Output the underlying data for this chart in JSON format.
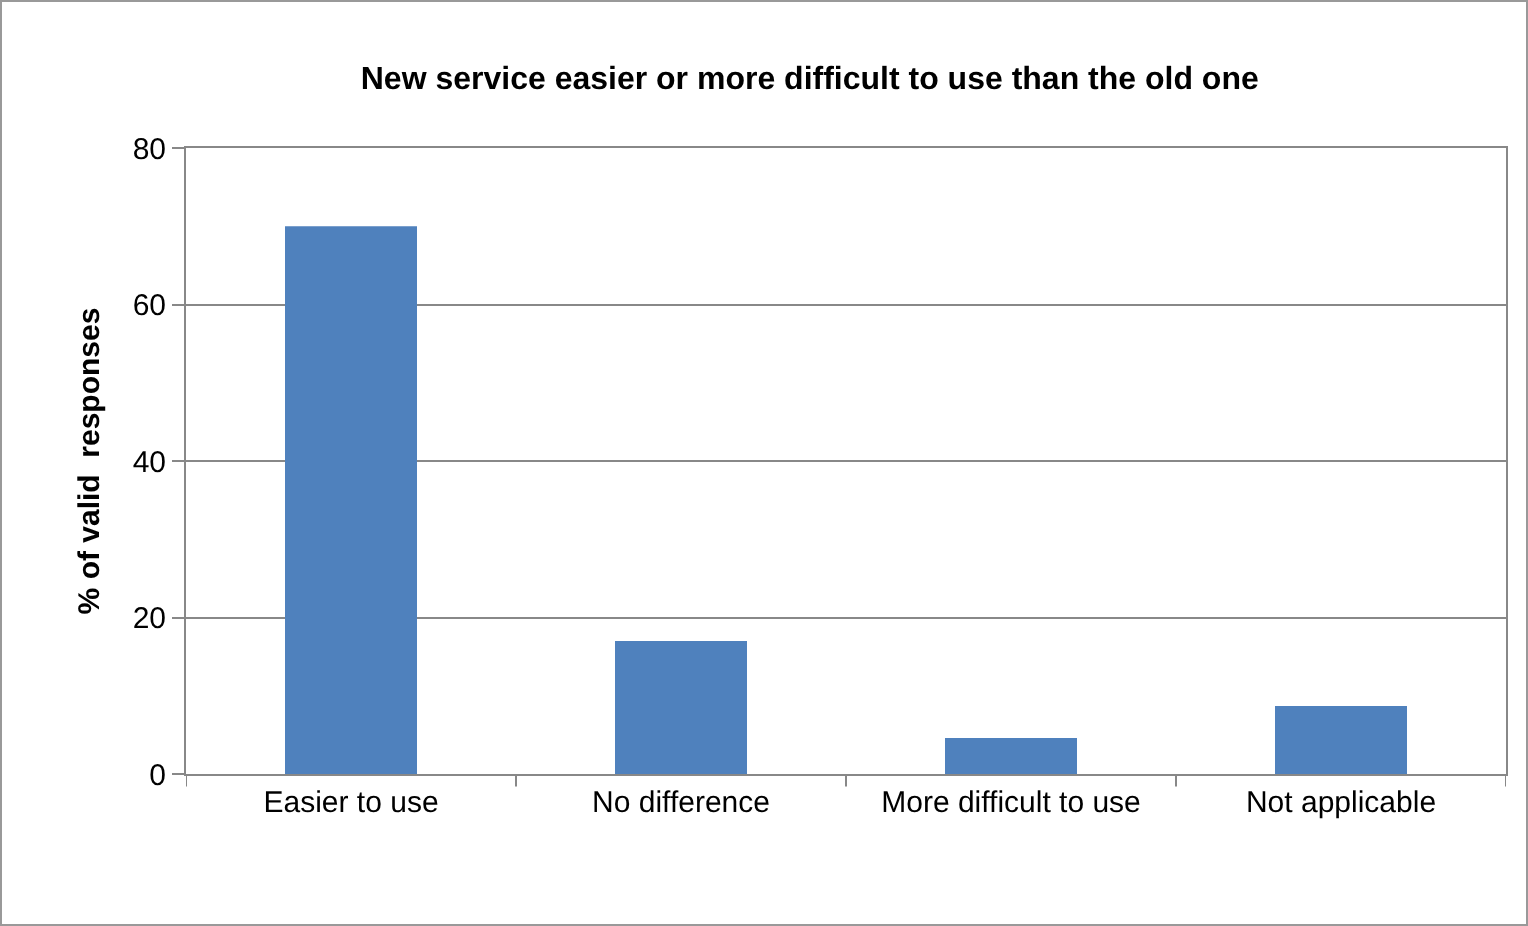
{
  "chart_data": {
    "type": "bar",
    "title": "New service easier or more difficult to use than the old one",
    "ylabel": "% of valid  responses",
    "categories": [
      "Easier to use",
      "No difference",
      "More difficult to use",
      "Not applicable"
    ],
    "values": [
      70,
      17,
      4.6,
      8.7
    ],
    "color": "#4f81bd",
    "ylim": [
      0,
      80
    ],
    "yticks": [
      0,
      20,
      40,
      60,
      80
    ],
    "grid": "y"
  }
}
